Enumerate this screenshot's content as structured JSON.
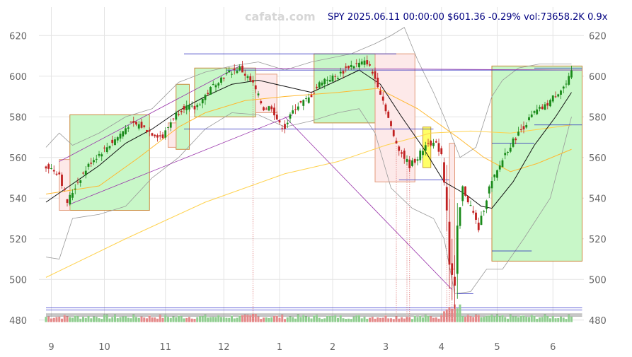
{
  "watermark": "cafata.com",
  "header": {
    "symbol": "SPY",
    "datetime": "2025.06.11 00:00:00",
    "price": "$601.36",
    "change": "-0.29%",
    "volume": "vol:73658.2K",
    "ratio": "0.9x"
  },
  "chart_data": {
    "type": "candlestick",
    "title": "",
    "xlabel": "",
    "ylabel": "",
    "ylim": [
      474,
      634
    ],
    "y_ticks": [
      480,
      500,
      520,
      540,
      560,
      580,
      600,
      620
    ],
    "x_ticks": [
      {
        "label": "9",
        "t": 2
      },
      {
        "label": "10",
        "t": 22
      },
      {
        "label": "11",
        "t": 45
      },
      {
        "label": "12",
        "t": 67
      },
      {
        "label": "1",
        "t": 88
      },
      {
        "label": "2",
        "t": 108
      },
      {
        "label": "3",
        "t": 128
      },
      {
        "label": "4",
        "t": 149
      },
      {
        "label": "5",
        "t": 170
      },
      {
        "label": "6",
        "t": 191
      }
    ],
    "t_range": [
      -4,
      204
    ],
    "grid": true,
    "price_path": [
      [
        0,
        556
      ],
      [
        5,
        552
      ],
      [
        8,
        538
      ],
      [
        12,
        548
      ],
      [
        17,
        558
      ],
      [
        22,
        564
      ],
      [
        27,
        570
      ],
      [
        31,
        576
      ],
      [
        35,
        576
      ],
      [
        40,
        572
      ],
      [
        44,
        570
      ],
      [
        48,
        580
      ],
      [
        52,
        585
      ],
      [
        56,
        584
      ],
      [
        61,
        592
      ],
      [
        64,
        597
      ],
      [
        68,
        601
      ],
      [
        73,
        604
      ],
      [
        78,
        596
      ],
      [
        82,
        584
      ],
      [
        85,
        585
      ],
      [
        88,
        576
      ],
      [
        90,
        575
      ],
      [
        94,
        585
      ],
      [
        99,
        589
      ],
      [
        104,
        598
      ],
      [
        110,
        600
      ],
      [
        114,
        605
      ],
      [
        118,
        606
      ],
      [
        121,
        607
      ],
      [
        125,
        596
      ],
      [
        128,
        584
      ],
      [
        131,
        570
      ],
      [
        134,
        562
      ],
      [
        137,
        556
      ],
      [
        140,
        560
      ],
      [
        144,
        568
      ],
      [
        147,
        566
      ],
      [
        149,
        562
      ],
      [
        151,
        535
      ],
      [
        152,
        508
      ],
      [
        154,
        496
      ],
      [
        155,
        525
      ],
      [
        157,
        545
      ],
      [
        160,
        536
      ],
      [
        163,
        525
      ],
      [
        167,
        545
      ],
      [
        170,
        553
      ],
      [
        173,
        562
      ],
      [
        177,
        570
      ],
      [
        181,
        577
      ],
      [
        184,
        582
      ],
      [
        188,
        585
      ],
      [
        192,
        591
      ],
      [
        196,
        596
      ],
      [
        198,
        601.36
      ]
    ],
    "ma_fast": [
      [
        0,
        538
      ],
      [
        10,
        547
      ],
      [
        20,
        556
      ],
      [
        30,
        567
      ],
      [
        40,
        574
      ],
      [
        50,
        583
      ],
      [
        60,
        590
      ],
      [
        70,
        596
      ],
      [
        80,
        598
      ],
      [
        90,
        595
      ],
      [
        100,
        592
      ],
      [
        110,
        598
      ],
      [
        118,
        603
      ],
      [
        126,
        596
      ],
      [
        134,
        580
      ],
      [
        142,
        565
      ],
      [
        150,
        548
      ],
      [
        158,
        542
      ],
      [
        164,
        536
      ],
      [
        168,
        535
      ],
      [
        176,
        548
      ],
      [
        184,
        566
      ],
      [
        192,
        580
      ],
      [
        198,
        592
      ]
    ],
    "ma_mid": [
      [
        0,
        542
      ],
      [
        20,
        546
      ],
      [
        35,
        560
      ],
      [
        50,
        575
      ],
      [
        60,
        582
      ],
      [
        75,
        588
      ],
      [
        90,
        590
      ],
      [
        110,
        592
      ],
      [
        125,
        594
      ],
      [
        140,
        584
      ],
      [
        155,
        570
      ],
      [
        165,
        560
      ],
      [
        175,
        553
      ],
      [
        185,
        557
      ],
      [
        198,
        564
      ]
    ],
    "ma_slow": [
      [
        0,
        501
      ],
      [
        30,
        520
      ],
      [
        60,
        538
      ],
      [
        90,
        552
      ],
      [
        110,
        558
      ],
      [
        128,
        566
      ],
      [
        145,
        572
      ],
      [
        160,
        573
      ],
      [
        175,
        572
      ],
      [
        198,
        576
      ]
    ],
    "band_upper": [
      [
        0,
        565
      ],
      [
        5,
        572
      ],
      [
        10,
        566
      ],
      [
        20,
        572
      ],
      [
        30,
        580
      ],
      [
        40,
        584
      ],
      [
        50,
        597
      ],
      [
        60,
        602
      ],
      [
        70,
        605
      ],
      [
        80,
        607
      ],
      [
        90,
        603
      ],
      [
        100,
        607
      ],
      [
        115,
        611
      ],
      [
        124,
        616
      ],
      [
        130,
        620
      ],
      [
        135,
        624
      ],
      [
        140,
        608
      ],
      [
        146,
        592
      ],
      [
        150,
        580
      ],
      [
        156,
        560
      ],
      [
        162,
        565
      ],
      [
        168,
        590
      ],
      [
        172,
        598
      ],
      [
        178,
        604
      ],
      [
        186,
        606
      ],
      [
        198,
        606
      ]
    ],
    "band_lower": [
      [
        0,
        511
      ],
      [
        5,
        510
      ],
      [
        10,
        530
      ],
      [
        20,
        532
      ],
      [
        30,
        536
      ],
      [
        40,
        550
      ],
      [
        50,
        560
      ],
      [
        60,
        574
      ],
      [
        70,
        582
      ],
      [
        80,
        581
      ],
      [
        90,
        575
      ],
      [
        100,
        578
      ],
      [
        110,
        582
      ],
      [
        118,
        584
      ],
      [
        124,
        572
      ],
      [
        130,
        545
      ],
      [
        138,
        535
      ],
      [
        146,
        530
      ],
      [
        150,
        520
      ],
      [
        154,
        493
      ],
      [
        160,
        494
      ],
      [
        166,
        505
      ],
      [
        172,
        505
      ],
      [
        180,
        520
      ],
      [
        190,
        540
      ],
      [
        196,
        570
      ],
      [
        198,
        580
      ]
    ],
    "zones": [
      {
        "t0": 9,
        "t1": 39,
        "y0": 534,
        "y1": 581,
        "kind": "green"
      },
      {
        "t0": 49,
        "t1": 54,
        "y0": 564,
        "y1": 596,
        "kind": "green"
      },
      {
        "t0": 56,
        "t1": 79,
        "y0": 580,
        "y1": 604,
        "kind": "green"
      },
      {
        "t0": 101,
        "t1": 124,
        "y0": 577,
        "y1": 611,
        "kind": "green"
      },
      {
        "t0": 168,
        "t1": 202,
        "y0": 509,
        "y1": 605,
        "kind": "green"
      },
      {
        "t0": 5,
        "t1": 9,
        "y0": 534,
        "y1": 559,
        "kind": "red"
      },
      {
        "t0": 46,
        "t1": 49,
        "y0": 565,
        "y1": 577,
        "kind": "red"
      },
      {
        "t0": 79,
        "t1": 87,
        "y0": 582,
        "y1": 601,
        "kind": "red"
      },
      {
        "t0": 124,
        "t1": 139,
        "y0": 548,
        "y1": 611,
        "kind": "red"
      },
      {
        "t0": 152,
        "t1": 154,
        "y0": 505,
        "y1": 567,
        "kind": "red"
      },
      {
        "t0": 142,
        "t1": 145,
        "y0": 555,
        "y1": 575,
        "kind": "yellow"
      }
    ],
    "h_levels": [
      {
        "t0": 52,
        "t1": 132,
        "y": 611
      },
      {
        "t0": 52,
        "t1": 146,
        "y": 574
      },
      {
        "t0": 68,
        "t1": 202,
        "y": 603
      },
      {
        "t0": 133,
        "t1": 152,
        "y": 549
      },
      {
        "t0": 168,
        "t1": 184,
        "y": 567
      },
      {
        "t0": 168,
        "t1": 183,
        "y": 514
      },
      {
        "t0": 155,
        "t1": 161,
        "y": 493
      },
      {
        "t0": 184,
        "t1": 202,
        "y": 576
      },
      {
        "t0": 184,
        "t1": 202,
        "y": 604
      }
    ],
    "trend_lines": [
      {
        "t0": 5,
        "y0": 558,
        "t1": 73,
        "y1": 605
      },
      {
        "t0": 9,
        "y0": 537,
        "t1": 93,
        "y1": 581
      },
      {
        "t0": 90,
        "y0": 580,
        "t1": 153,
        "y1": 495
      },
      {
        "t0": 73,
        "y0": 604,
        "t1": 202,
        "y1": 603
      }
    ],
    "v_markers": [
      78,
      132,
      136,
      137,
      151,
      152,
      153
    ]
  }
}
